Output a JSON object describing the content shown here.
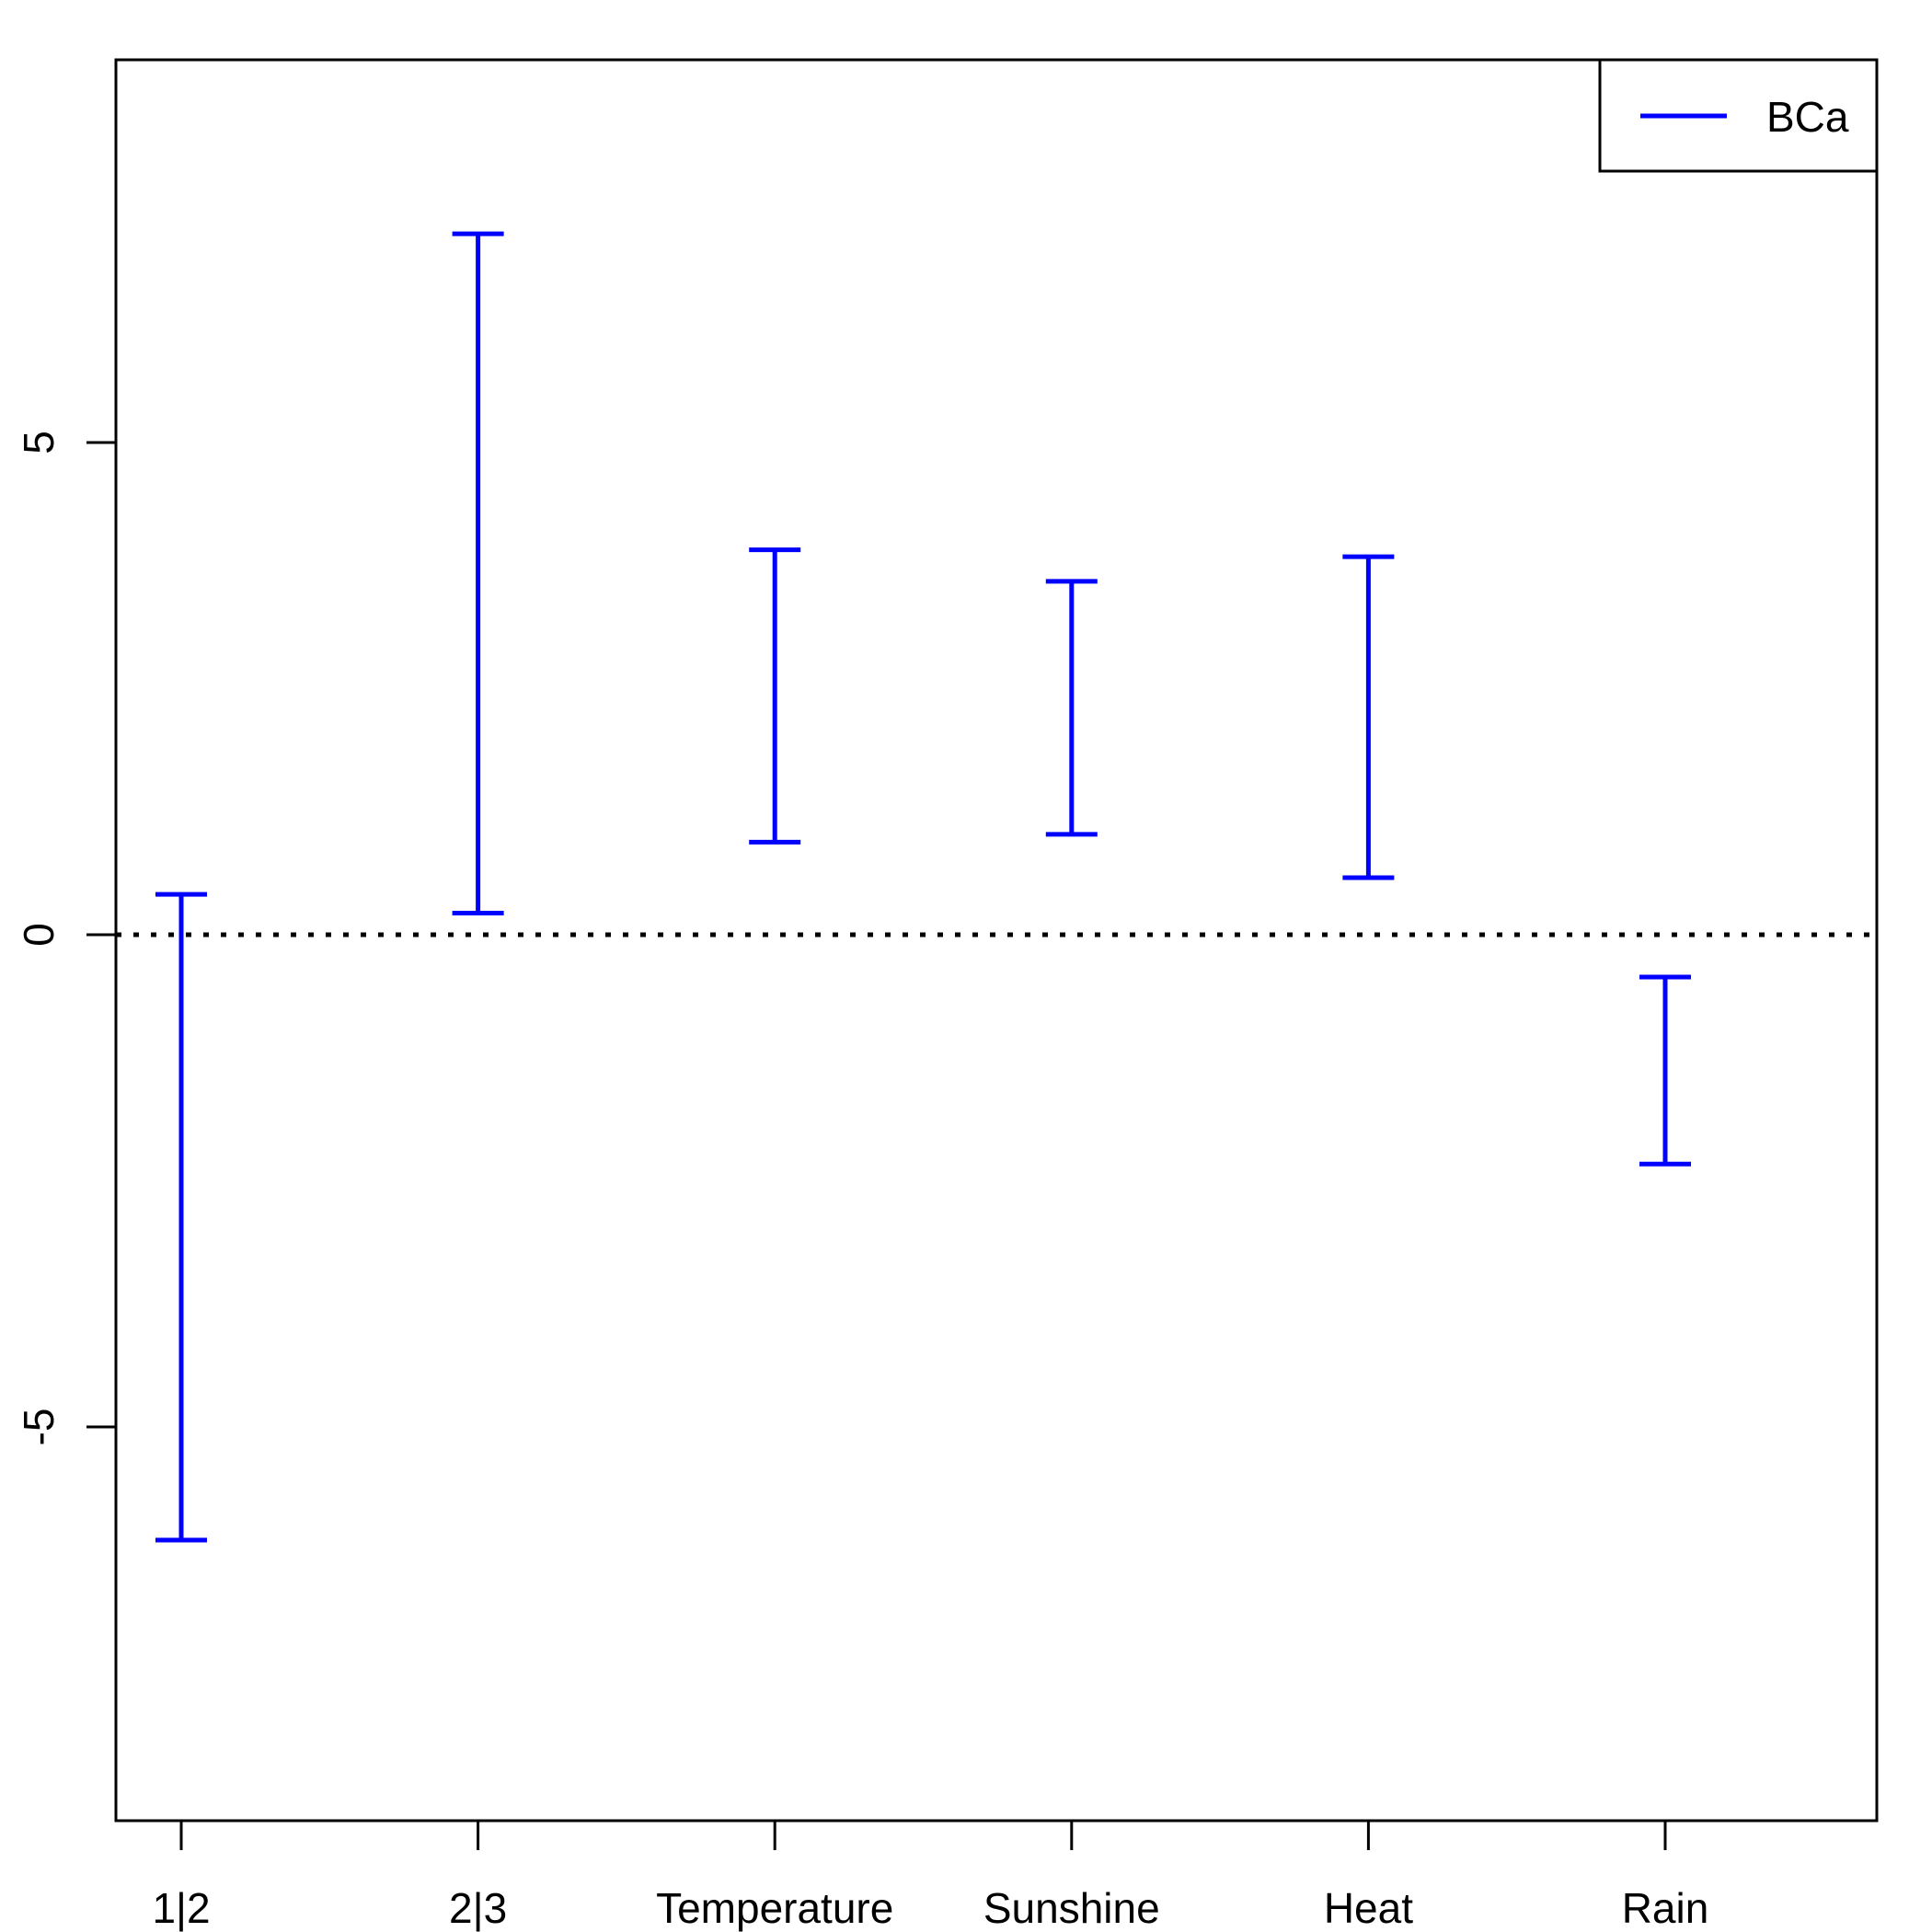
{
  "chart_data": {
    "type": "errorbar",
    "title": "",
    "xlabel": "",
    "ylabel": "",
    "categories": [
      "1|2",
      "2|3",
      "Temperature",
      "Sunshine",
      "Heat",
      "Rain"
    ],
    "series": [
      {
        "name": "BCa",
        "color": "#0000ff",
        "lower": [
          -6.15,
          0.22,
          0.94,
          1.02,
          0.58,
          -2.33
        ],
        "upper": [
          0.41,
          7.12,
          3.91,
          3.59,
          3.84,
          -0.43
        ]
      }
    ],
    "ylim": [
      -9,
      8.9
    ],
    "yticks": [
      -5,
      0,
      5
    ],
    "ytick_labels": [
      "-5",
      "0",
      "5"
    ],
    "reference_line": {
      "y": 0,
      "style": "dotted",
      "color": "#000000"
    },
    "legend": {
      "position": "top-right",
      "entries": [
        "BCa"
      ]
    },
    "grid": false
  }
}
